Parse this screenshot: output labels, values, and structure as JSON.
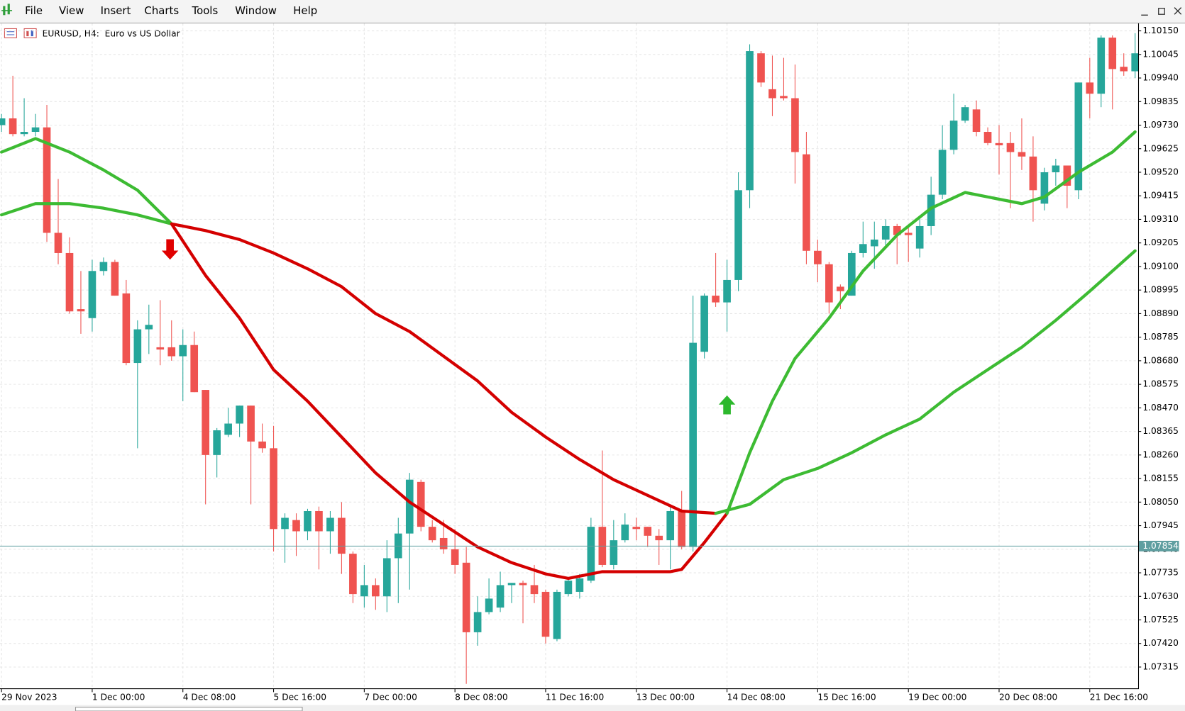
{
  "menu": [
    "File",
    "View",
    "Insert",
    "Charts",
    "Tools",
    "Window",
    "Help"
  ],
  "chart_data": {
    "type": "candlestick",
    "title": "EURUSD, H4:  Euro vs US Dollar",
    "up_color": "#26a69a",
    "down_color": "#ef5350",
    "grid": true,
    "xlim": [
      0,
      100
    ],
    "xticks": [
      {
        "value": 0,
        "label": "29 Nov 2023"
      },
      {
        "value": 8,
        "label": "1 Dec 00:00"
      },
      {
        "value": 16,
        "label": "4 Dec 08:00"
      },
      {
        "value": 24,
        "label": "5 Dec 16:00"
      },
      {
        "value": 32,
        "label": "7 Dec 00:00"
      },
      {
        "value": 40,
        "label": "8 Dec 08:00"
      },
      {
        "value": 48,
        "label": "11 Dec 16:00"
      },
      {
        "value": 56,
        "label": "13 Dec 00:00"
      },
      {
        "value": 64,
        "label": "14 Dec 08:00"
      },
      {
        "value": 72,
        "label": "15 Dec 16:00"
      },
      {
        "value": 80,
        "label": "19 Dec 00:00"
      },
      {
        "value": 88,
        "label": "20 Dec 08:00"
      },
      {
        "value": 96,
        "label": "21 Dec 16:00"
      }
    ],
    "ylim": [
      1.0722,
      1.1018
    ],
    "yticks": [
      {
        "value": 1.1015,
        "label": "1.10150"
      },
      1.10045,
      {
        "value": 1.0994,
        "label": "1.09940"
      },
      1.09835,
      {
        "value": 1.0973,
        "label": "1.09730"
      },
      1.09625,
      {
        "value": 1.0952,
        "label": "1.09520"
      },
      1.09415,
      {
        "value": 1.0931,
        "label": "1.09310"
      },
      1.09205,
      {
        "value": 1.091,
        "label": "1.09100"
      },
      1.08995,
      {
        "value": 1.0889,
        "label": "1.08890"
      },
      1.08785,
      {
        "value": 1.0868,
        "label": "1.08680"
      },
      1.08575,
      {
        "value": 1.0847,
        "label": "1.08470"
      },
      1.08365,
      {
        "value": 1.0826,
        "label": "1.08260"
      },
      1.08155,
      {
        "value": 1.0805,
        "label": "1.08050"
      },
      1.07945,
      {
        "value": 1.0784,
        "label": "1.07840"
      },
      1.07735,
      {
        "value": 1.0763,
        "label": "1.07630"
      },
      1.07525,
      {
        "value": 1.0742,
        "label": "1.07420"
      },
      1.07315
    ],
    "current_price": {
      "value": 1.07854,
      "label": "1.07854"
    },
    "open": [
      1.0973,
      1.0976,
      1.0969,
      1.097,
      1.0972,
      1.0925,
      1.0916,
      1.0891,
      1.0887,
      1.0908,
      1.0912,
      1.0898,
      1.0867,
      1.0882,
      1.0874,
      1.0874,
      1.087,
      1.0875,
      1.0855,
      1.0826,
      1.0835,
      1.084,
      1.0848,
      1.0832,
      1.0829,
      1.0793,
      1.0797,
      1.0792,
      1.0801,
      1.0792,
      1.0798,
      1.0782,
      1.0763,
      1.0768,
      1.0763,
      1.078,
      1.0791,
      1.0814,
      1.0794,
      1.0789,
      1.0784,
      1.0778,
      1.0747,
      1.0756,
      1.0758,
      1.0768,
      1.0769,
      1.0768,
      1.0765,
      1.0744,
      1.0764,
      1.0765,
      1.077,
      1.0794,
      1.0777,
      1.0788,
      1.0794,
      1.0794,
      1.079,
      1.0788,
      1.0801,
      1.0785,
      1.0872,
      1.0897,
      1.0894,
      1.0904,
      1.0944,
      1.1005,
      1.0989,
      1.0986,
      1.0985,
      1.096,
      1.0917,
      1.0911,
      1.0901,
      1.0897,
      1.0916,
      1.0919,
      1.0922,
      1.0928,
      1.0925,
      1.0918,
      1.0928,
      1.0942,
      1.0962,
      1.0975,
      1.098,
      1.097,
      1.0965,
      1.0965,
      1.0961,
      1.0959,
      1.0938,
      1.0952,
      1.0955,
      1.0944,
      1.0992,
      1.0987,
      1.1012,
      1.0999,
      1.0997
    ],
    "high": [
      1.0978,
      1.0995,
      1.0985,
      1.0978,
      1.0982,
      1.0949,
      1.0923,
      1.0908,
      1.0913,
      1.0914,
      1.0913,
      1.0904,
      1.0886,
      1.0893,
      1.0895,
      1.0886,
      1.0882,
      1.0881,
      1.0855,
      1.0838,
      1.0847,
      1.0848,
      1.0848,
      1.084,
      1.0839,
      1.08,
      1.08,
      1.0802,
      1.0803,
      1.0801,
      1.0805,
      1.0783,
      1.0777,
      1.0771,
      1.0788,
      1.0798,
      1.0818,
      1.0815,
      1.0797,
      1.0797,
      1.0793,
      1.0785,
      1.0763,
      1.0771,
      1.0774,
      1.0769,
      1.077,
      1.0777,
      1.0766,
      1.0766,
      1.0771,
      1.0773,
      1.0798,
      1.0828,
      1.0797,
      1.08,
      1.0798,
      1.0794,
      1.0793,
      1.0803,
      1.081,
      1.0897,
      1.0898,
      1.0916,
      1.0913,
      1.0952,
      1.1009,
      1.1006,
      1.1004,
      1.1003,
      1.1,
      1.097,
      1.0922,
      1.0912,
      1.0902,
      1.0917,
      1.093,
      1.093,
      1.0931,
      1.0929,
      1.0928,
      1.0931,
      1.095,
      1.0973,
      1.0987,
      1.0982,
      1.0984,
      1.0972,
      1.0973,
      1.097,
      1.0976,
      1.0968,
      1.0954,
      1.0958,
      1.0955,
      1.0992,
      1.1003,
      1.1013,
      1.1013,
      1.1005,
      1.1014
    ],
    "low": [
      1.097,
      1.0968,
      1.0968,
      1.0968,
      1.0921,
      1.0911,
      1.0889,
      1.088,
      1.0881,
      1.0906,
      1.0897,
      1.0866,
      1.0829,
      1.0871,
      1.0866,
      1.0868,
      1.085,
      1.0854,
      1.0804,
      1.0816,
      1.0834,
      1.0834,
      1.0804,
      1.0827,
      1.0783,
      1.0778,
      1.0781,
      1.0788,
      1.0775,
      1.0782,
      1.0773,
      1.076,
      1.0758,
      1.0757,
      1.0756,
      1.076,
      1.0766,
      1.0792,
      1.0787,
      1.0782,
      1.0773,
      1.0724,
      1.0741,
      1.0755,
      1.0756,
      1.076,
      1.0751,
      1.076,
      1.0742,
      1.0743,
      1.0763,
      1.0762,
      1.0769,
      1.0776,
      1.0775,
      1.0787,
      1.0788,
      1.0785,
      1.0777,
      1.0775,
      1.0784,
      1.0783,
      1.0869,
      1.0892,
      1.0881,
      1.0899,
      1.0936,
      1.099,
      1.0977,
      1.0984,
      1.0947,
      1.0911,
      1.0903,
      1.0889,
      1.0891,
      1.0897,
      1.0914,
      1.0909,
      1.0918,
      1.0911,
      1.0912,
      1.0914,
      1.0924,
      1.094,
      1.096,
      1.0974,
      1.0968,
      1.0964,
      1.0951,
      1.0936,
      1.0953,
      1.093,
      1.0935,
      1.0946,
      1.0936,
      1.094,
      1.0976,
      1.0981,
      1.098,
      1.0995,
      1.0994
    ],
    "close": [
      1.0976,
      1.0969,
      1.097,
      1.0972,
      1.0925,
      1.0916,
      1.089,
      1.089,
      1.0908,
      1.0912,
      1.0897,
      1.0867,
      1.0882,
      1.0884,
      1.0873,
      1.087,
      1.0875,
      1.0854,
      1.0826,
      1.0837,
      1.084,
      1.0848,
      1.0832,
      1.0829,
      1.0793,
      1.0798,
      1.0792,
      1.0801,
      1.0792,
      1.0798,
      1.0782,
      1.0764,
      1.0768,
      1.0763,
      1.078,
      1.0791,
      1.0815,
      1.0794,
      1.0788,
      1.0784,
      1.0777,
      1.0747,
      1.0756,
      1.0762,
      1.0768,
      1.0769,
      1.0768,
      1.0764,
      1.0745,
      1.0765,
      1.077,
      1.0771,
      1.0794,
      1.0777,
      1.0788,
      1.0795,
      1.0793,
      1.079,
      1.0788,
      1.0801,
      1.0785,
      1.0876,
      1.0897,
      1.0894,
      1.0904,
      1.0944,
      1.1006,
      1.0992,
      1.0985,
      1.0985,
      1.0961,
      1.0917,
      1.0911,
      1.0894,
      1.0899,
      1.0916,
      1.092,
      1.0922,
      1.0928,
      1.0924,
      1.0924,
      1.0928,
      1.0942,
      1.0962,
      1.0975,
      1.0981,
      1.097,
      1.0965,
      1.0964,
      1.0961,
      1.0959,
      1.0944,
      1.0952,
      1.0955,
      1.0946,
      1.0992,
      1.0987,
      1.1012,
      1.0998,
      1.0997,
      1.1005
    ],
    "series": [
      {
        "color": "#3dbb33",
        "x": [
          0,
          3,
          6,
          9,
          12,
          15
        ],
        "values": [
          1.0961,
          1.0967,
          1.0961,
          1.0953,
          1.0944,
          1.0929
        ]
      },
      {
        "color": "#d40000",
        "x": [
          15,
          18,
          21,
          24,
          27,
          30,
          33,
          36,
          39,
          42,
          45,
          48,
          50,
          53,
          56,
          59,
          60,
          62,
          64
        ],
        "values": [
          1.0929,
          1.0906,
          1.0887,
          1.0864,
          1.085,
          1.0834,
          1.0818,
          1.0805,
          1.0795,
          1.0785,
          1.0778,
          1.0773,
          1.0771,
          1.0774,
          1.0774,
          1.0774,
          1.0775,
          1.0787,
          1.08
        ]
      },
      {
        "color": "#3dbb33",
        "x": [
          64,
          66,
          68,
          70,
          73,
          76,
          79,
          82,
          85,
          88,
          90,
          92,
          95,
          98,
          100
        ],
        "values": [
          1.08,
          1.0827,
          1.085,
          1.0869,
          1.0887,
          1.0908,
          1.0924,
          1.0936,
          1.0943,
          1.094,
          1.0938,
          1.0941,
          1.0952,
          1.0961,
          1.097
        ]
      },
      {
        "color": "#3dbb33",
        "x": [
          0,
          3,
          6,
          9,
          12,
          15
        ],
        "values": [
          1.0933,
          1.0938,
          1.0938,
          1.0936,
          1.0933,
          1.0929
        ]
      },
      {
        "color": "#d40000",
        "x": [
          15,
          18,
          21,
          24,
          27,
          30,
          33,
          36,
          39,
          42,
          45,
          48,
          51,
          54,
          57,
          60,
          63
        ],
        "values": [
          1.0929,
          1.0926,
          1.0922,
          1.0916,
          1.0909,
          1.0901,
          1.0889,
          1.0881,
          1.087,
          1.0859,
          1.0845,
          1.0834,
          1.0824,
          1.0815,
          1.0808,
          1.0801,
          1.08
        ]
      },
      {
        "color": "#3dbb33",
        "x": [
          63,
          66,
          69,
          72,
          75,
          78,
          81,
          84,
          87,
          90,
          93,
          96,
          100
        ],
        "values": [
          1.08,
          1.0804,
          1.0815,
          1.082,
          1.0827,
          1.0835,
          1.0842,
          1.0854,
          1.0864,
          1.0874,
          1.0886,
          1.0899,
          1.0917
        ]
      }
    ]
  }
}
